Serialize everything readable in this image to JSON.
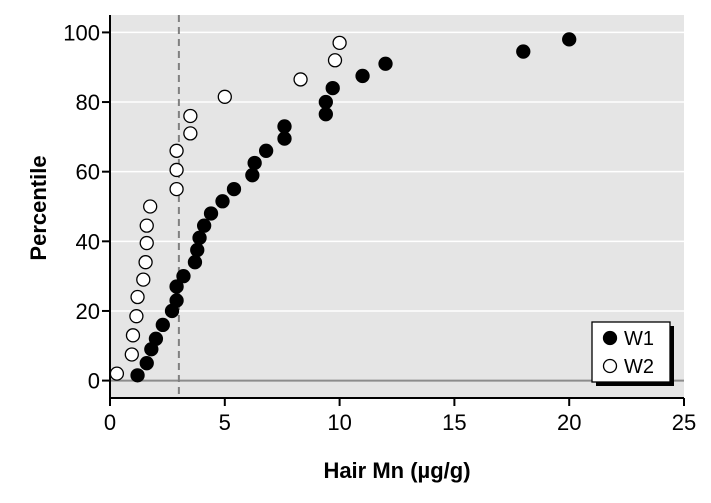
{
  "chart_data": {
    "type": "scatter",
    "title": "",
    "xlabel": "Hair Mn (µg/g)",
    "ylabel": "Percentile",
    "xlim": [
      0,
      25
    ],
    "ylim": [
      -5,
      105
    ],
    "xticks": [
      0,
      5,
      10,
      15,
      20,
      25
    ],
    "yticks": [
      0,
      20,
      40,
      60,
      80,
      100
    ],
    "xtick_labels": [
      "0",
      "5",
      "10",
      "15",
      "20",
      "25"
    ],
    "ytick_labels": [
      "0",
      "20",
      "40",
      "60",
      "80",
      "100"
    ],
    "grid": true,
    "reference_line_x": 3,
    "legend_position": "bottom-right",
    "series": [
      {
        "name": "W1",
        "marker": "filled-circle",
        "color": "#000000",
        "points": [
          {
            "x": 1.2,
            "y": 1.5
          },
          {
            "x": 1.6,
            "y": 5
          },
          {
            "x": 1.8,
            "y": 9
          },
          {
            "x": 2.0,
            "y": 12
          },
          {
            "x": 2.3,
            "y": 16
          },
          {
            "x": 2.7,
            "y": 20
          },
          {
            "x": 2.9,
            "y": 23
          },
          {
            "x": 2.9,
            "y": 27
          },
          {
            "x": 3.2,
            "y": 30
          },
          {
            "x": 3.7,
            "y": 34
          },
          {
            "x": 3.8,
            "y": 37.5
          },
          {
            "x": 3.9,
            "y": 41
          },
          {
            "x": 4.1,
            "y": 44.5
          },
          {
            "x": 4.4,
            "y": 48
          },
          {
            "x": 4.9,
            "y": 51.5
          },
          {
            "x": 5.4,
            "y": 55
          },
          {
            "x": 6.2,
            "y": 59
          },
          {
            "x": 6.3,
            "y": 62.5
          },
          {
            "x": 6.8,
            "y": 66
          },
          {
            "x": 7.6,
            "y": 69.5
          },
          {
            "x": 7.6,
            "y": 73
          },
          {
            "x": 9.4,
            "y": 76.5
          },
          {
            "x": 9.4,
            "y": 80
          },
          {
            "x": 9.7,
            "y": 84
          },
          {
            "x": 11.0,
            "y": 87.5
          },
          {
            "x": 12.0,
            "y": 91
          },
          {
            "x": 18.0,
            "y": 94.5
          },
          {
            "x": 20.0,
            "y": 98
          }
        ]
      },
      {
        "name": "W2",
        "marker": "open-circle",
        "color": "#000000",
        "points": [
          {
            "x": 0.3,
            "y": 2
          },
          {
            "x": 0.95,
            "y": 7.5
          },
          {
            "x": 1.0,
            "y": 13
          },
          {
            "x": 1.15,
            "y": 18.5
          },
          {
            "x": 1.2,
            "y": 24
          },
          {
            "x": 1.45,
            "y": 29
          },
          {
            "x": 1.55,
            "y": 34
          },
          {
            "x": 1.6,
            "y": 39.5
          },
          {
            "x": 1.6,
            "y": 44.5
          },
          {
            "x": 1.75,
            "y": 50
          },
          {
            "x": 2.9,
            "y": 55
          },
          {
            "x": 2.9,
            "y": 60.5
          },
          {
            "x": 2.9,
            "y": 66
          },
          {
            "x": 3.5,
            "y": 71
          },
          {
            "x": 3.5,
            "y": 76
          },
          {
            "x": 5.0,
            "y": 81.5
          },
          {
            "x": 8.3,
            "y": 86.5
          },
          {
            "x": 9.8,
            "y": 92
          },
          {
            "x": 10.0,
            "y": 97
          }
        ]
      }
    ]
  }
}
